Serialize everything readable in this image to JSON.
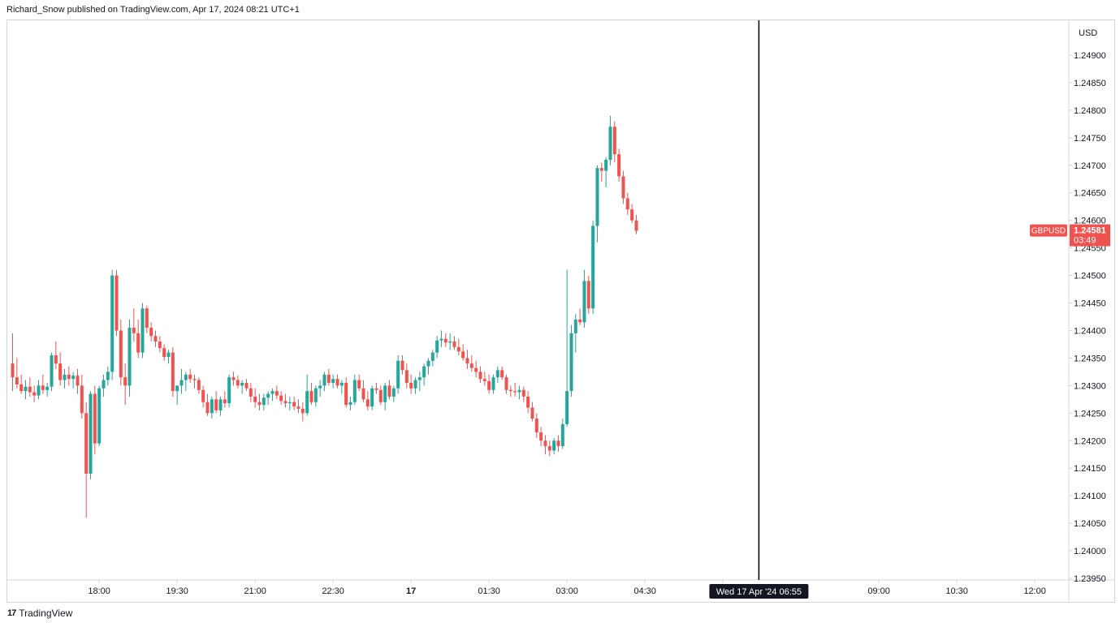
{
  "header": {
    "published_text": "Richard_Snow published on TradingView.com, Apr 17, 2024 08:21 UTC+1"
  },
  "footer": {
    "logo_icon": "tradingview-logo-icon",
    "logo_glyph": "17",
    "brand": "TradingView"
  },
  "colors": {
    "up": "#26a69a",
    "down": "#ef5350",
    "axis_text": "#131722",
    "border": "#d1d4dc",
    "crosshair": "#000000",
    "price_label_bg": "#ef5350"
  },
  "chart_data": {
    "type": "candlestick",
    "symbol": "GBPUSD",
    "currency_label": "USD",
    "last_price_label": "1.24581",
    "countdown_label": "03:49",
    "ylim": [
      1.2395,
      1.2493
    ],
    "y_ticks": [
      "1.24900",
      "1.24850",
      "1.24800",
      "1.24750",
      "1.24700",
      "1.24650",
      "1.24600",
      "1.24550",
      "1.24500",
      "1.24450",
      "1.24400",
      "1.24350",
      "1.24300",
      "1.24250",
      "1.24200",
      "1.24150",
      "1.24100",
      "1.24050",
      "1.24000",
      "1.23950"
    ],
    "x_ticks": [
      {
        "label": "18:00",
        "index": 20,
        "bold": false
      },
      {
        "label": "19:30",
        "index": 38,
        "bold": false
      },
      {
        "label": "21:00",
        "index": 56,
        "bold": false
      },
      {
        "label": "22:30",
        "index": 74,
        "bold": false
      },
      {
        "label": "17",
        "index": 92,
        "bold": true
      },
      {
        "label": "01:30",
        "index": 110,
        "bold": false
      },
      {
        "label": "03:00",
        "index": 128,
        "bold": false
      },
      {
        "label": "04:30",
        "index": 146,
        "bold": false
      },
      {
        "label": "06",
        "index": 164,
        "bold": false
      },
      {
        "label": "09:00",
        "index": 200,
        "bold": false
      },
      {
        "label": "10:30",
        "index": 218,
        "bold": false
      },
      {
        "label": "12:00",
        "index": 236,
        "bold": false
      }
    ],
    "crosshair": {
      "index": 172.3,
      "label": "Wed 17 Apr '24   06:55"
    },
    "candles": [
      [
        1.2434,
        1.24395,
        1.2429,
        1.24315
      ],
      [
        1.24315,
        1.2435,
        1.24295,
        1.24302
      ],
      [
        1.24302,
        1.2432,
        1.24285,
        1.2429
      ],
      [
        1.2429,
        1.2431,
        1.24275,
        1.24298
      ],
      [
        1.24298,
        1.24315,
        1.2428,
        1.24288
      ],
      [
        1.24288,
        1.243,
        1.2427,
        1.24282
      ],
      [
        1.24282,
        1.2431,
        1.24275,
        1.243
      ],
      [
        1.243,
        1.2432,
        1.24285,
        1.24292
      ],
      [
        1.24292,
        1.24305,
        1.2428,
        1.24298
      ],
      [
        1.24298,
        1.2436,
        1.2429,
        1.24355
      ],
      [
        1.24355,
        1.2438,
        1.2433,
        1.2434
      ],
      [
        1.2434,
        1.2436,
        1.243,
        1.2431
      ],
      [
        1.2431,
        1.2433,
        1.24295,
        1.2432
      ],
      [
        1.2432,
        1.24335,
        1.243,
        1.24312
      ],
      [
        1.24312,
        1.24325,
        1.24295,
        1.24318
      ],
      [
        1.24318,
        1.2433,
        1.24285,
        1.243
      ],
      [
        1.243,
        1.2432,
        1.2424,
        1.2425
      ],
      [
        1.2425,
        1.2427,
        1.2406,
        1.2414
      ],
      [
        1.2414,
        1.2429,
        1.2413,
        1.24285
      ],
      [
        1.24285,
        1.243,
        1.24175,
        1.24195
      ],
      [
        1.24195,
        1.243,
        1.2419,
        1.24295
      ],
      [
        1.24295,
        1.2432,
        1.2428,
        1.2431
      ],
      [
        1.2431,
        1.24335,
        1.243,
        1.24325
      ],
      [
        1.24325,
        1.2451,
        1.2431,
        1.245
      ],
      [
        1.245,
        1.2451,
        1.2439,
        1.244
      ],
      [
        1.244,
        1.2442,
        1.243,
        1.24315
      ],
      [
        1.24315,
        1.2434,
        1.24265,
        1.243
      ],
      [
        1.243,
        1.2442,
        1.2428,
        1.24405
      ],
      [
        1.24405,
        1.2444,
        1.2438,
        1.24395
      ],
      [
        1.24395,
        1.2442,
        1.2435,
        1.2436
      ],
      [
        1.2436,
        1.2445,
        1.2435,
        1.2444
      ],
      [
        1.2444,
        1.24445,
        1.24395,
        1.24405
      ],
      [
        1.24405,
        1.24415,
        1.2438,
        1.2439
      ],
      [
        1.2439,
        1.244,
        1.2437,
        1.2438
      ],
      [
        1.2438,
        1.2439,
        1.2436,
        1.24368
      ],
      [
        1.24368,
        1.24375,
        1.24345,
        1.24352
      ],
      [
        1.24352,
        1.24365,
        1.2434,
        1.2436
      ],
      [
        1.2436,
        1.2437,
        1.2428,
        1.2429
      ],
      [
        1.2429,
        1.243,
        1.24265,
        1.243
      ],
      [
        1.243,
        1.2433,
        1.24285,
        1.2431
      ],
      [
        1.2431,
        1.24325,
        1.2429,
        1.2432
      ],
      [
        1.2432,
        1.2433,
        1.24305,
        1.24312
      ],
      [
        1.24312,
        1.2432,
        1.24295,
        1.2431
      ],
      [
        1.2431,
        1.24315,
        1.24285,
        1.24292
      ],
      [
        1.24292,
        1.243,
        1.2426,
        1.2427
      ],
      [
        1.2427,
        1.24285,
        1.24245,
        1.2425
      ],
      [
        1.2425,
        1.2428,
        1.2424,
        1.24275
      ],
      [
        1.24275,
        1.2429,
        1.2425,
        1.24255
      ],
      [
        1.24255,
        1.2428,
        1.24245,
        1.24275
      ],
      [
        1.24275,
        1.2429,
        1.2426,
        1.24268
      ],
      [
        1.24268,
        1.2432,
        1.2426,
        1.24315
      ],
      [
        1.24315,
        1.24325,
        1.243,
        1.2431
      ],
      [
        1.2431,
        1.24318,
        1.24295,
        1.243
      ],
      [
        1.243,
        1.2431,
        1.24285,
        1.24305
      ],
      [
        1.24305,
        1.24312,
        1.2429,
        1.24295
      ],
      [
        1.24295,
        1.24305,
        1.2427,
        1.2428
      ],
      [
        1.2428,
        1.24295,
        1.2426,
        1.2427
      ],
      [
        1.2427,
        1.24285,
        1.24255,
        1.24265
      ],
      [
        1.24265,
        1.24285,
        1.24255,
        1.24278
      ],
      [
        1.24278,
        1.2429,
        1.24265,
        1.24285
      ],
      [
        1.24285,
        1.24295,
        1.24272,
        1.2429
      ],
      [
        1.2429,
        1.243,
        1.24275,
        1.24282
      ],
      [
        1.24282,
        1.2429,
        1.24265,
        1.24272
      ],
      [
        1.24272,
        1.24285,
        1.2426,
        1.24268
      ],
      [
        1.24268,
        1.2428,
        1.24255,
        1.2427
      ],
      [
        1.2427,
        1.2428,
        1.24255,
        1.24262
      ],
      [
        1.24262,
        1.24275,
        1.2425,
        1.24258
      ],
      [
        1.24258,
        1.2427,
        1.24235,
        1.2425
      ],
      [
        1.2425,
        1.2432,
        1.24245,
        1.2429
      ],
      [
        1.2429,
        1.24305,
        1.24265,
        1.2427
      ],
      [
        1.2427,
        1.243,
        1.24262,
        1.24295
      ],
      [
        1.24295,
        1.2431,
        1.2428,
        1.243
      ],
      [
        1.243,
        1.24325,
        1.2429,
        1.2432
      ],
      [
        1.2432,
        1.2433,
        1.243,
        1.24305
      ],
      [
        1.24305,
        1.2432,
        1.24295,
        1.24312
      ],
      [
        1.24312,
        1.2432,
        1.24295,
        1.243
      ],
      [
        1.243,
        1.2431,
        1.24285,
        1.24305
      ],
      [
        1.24305,
        1.24315,
        1.2426,
        1.24265
      ],
      [
        1.24265,
        1.2428,
        1.24255,
        1.2427
      ],
      [
        1.2427,
        1.2432,
        1.24265,
        1.2431
      ],
      [
        1.2431,
        1.2432,
        1.2429,
        1.24295
      ],
      [
        1.24295,
        1.2431,
        1.2427,
        1.24275
      ],
      [
        1.24275,
        1.2429,
        1.24255,
        1.24262
      ],
      [
        1.24262,
        1.243,
        1.24255,
        1.24295
      ],
      [
        1.24295,
        1.24305,
        1.24285,
        1.24292
      ],
      [
        1.24292,
        1.243,
        1.24265,
        1.2427
      ],
      [
        1.2427,
        1.24305,
        1.24255,
        1.243
      ],
      [
        1.243,
        1.2431,
        1.24275,
        1.2428
      ],
      [
        1.2428,
        1.243,
        1.2427,
        1.24295
      ],
      [
        1.24295,
        1.24355,
        1.24285,
        1.24345
      ],
      [
        1.24345,
        1.24355,
        1.2432,
        1.24328
      ],
      [
        1.24328,
        1.2434,
        1.24295,
        1.24305
      ],
      [
        1.24305,
        1.2432,
        1.24285,
        1.24295
      ],
      [
        1.24295,
        1.24315,
        1.24285,
        1.2431
      ],
      [
        1.2431,
        1.24325,
        1.2429,
        1.24315
      ],
      [
        1.24315,
        1.2434,
        1.243,
        1.24335
      ],
      [
        1.24335,
        1.2435,
        1.2432,
        1.24345
      ],
      [
        1.24345,
        1.24365,
        1.24335,
        1.2436
      ],
      [
        1.2436,
        1.2439,
        1.2435,
        1.24382
      ],
      [
        1.24382,
        1.244,
        1.2437,
        1.24385
      ],
      [
        1.24385,
        1.24395,
        1.2437,
        1.24378
      ],
      [
        1.24378,
        1.24395,
        1.24365,
        1.2438
      ],
      [
        1.2438,
        1.2439,
        1.24365,
        1.2437
      ],
      [
        1.2437,
        1.24385,
        1.24355,
        1.24362
      ],
      [
        1.24362,
        1.24375,
        1.24345,
        1.2435
      ],
      [
        1.2435,
        1.24365,
        1.2433,
        1.2434
      ],
      [
        1.2434,
        1.24355,
        1.24325,
        1.24332
      ],
      [
        1.24332,
        1.24345,
        1.24315,
        1.24325
      ],
      [
        1.24325,
        1.24335,
        1.24305,
        1.24312
      ],
      [
        1.24312,
        1.24325,
        1.243,
        1.24308
      ],
      [
        1.24308,
        1.2432,
        1.24285,
        1.24292
      ],
      [
        1.24292,
        1.2432,
        1.24285,
        1.24315
      ],
      [
        1.24315,
        1.24335,
        1.24305,
        1.24328
      ],
      [
        1.24328,
        1.24335,
        1.2431,
        1.24315
      ],
      [
        1.24315,
        1.2432,
        1.24285,
        1.24292
      ],
      [
        1.24292,
        1.243,
        1.2428,
        1.2429
      ],
      [
        1.2429,
        1.24305,
        1.2428,
        1.24288
      ],
      [
        1.24288,
        1.243,
        1.24275,
        1.24292
      ],
      [
        1.24292,
        1.24298,
        1.2427,
        1.2428
      ],
      [
        1.2428,
        1.2429,
        1.2425,
        1.2426
      ],
      [
        1.2426,
        1.2427,
        1.24235,
        1.2424
      ],
      [
        1.2424,
        1.2425,
        1.24205,
        1.24215
      ],
      [
        1.24215,
        1.24225,
        1.2419,
        1.242
      ],
      [
        1.242,
        1.2421,
        1.24175,
        1.2419
      ],
      [
        1.2419,
        1.242,
        1.24172,
        1.24182
      ],
      [
        1.24182,
        1.24205,
        1.24175,
        1.242
      ],
      [
        1.242,
        1.2421,
        1.2418,
        1.2419
      ],
      [
        1.2419,
        1.2424,
        1.24185,
        1.2423
      ],
      [
        1.2423,
        1.2451,
        1.24225,
        1.2429
      ],
      [
        1.2429,
        1.2441,
        1.2428,
        1.24395
      ],
      [
        1.24395,
        1.2443,
        1.2436,
        1.2442
      ],
      [
        1.2442,
        1.2444,
        1.2441,
        1.24415
      ],
      [
        1.24415,
        1.2451,
        1.24405,
        1.2449
      ],
      [
        1.2449,
        1.245,
        1.2443,
        1.2444
      ],
      [
        1.2444,
        1.246,
        1.2443,
        1.2459
      ],
      [
        1.2459,
        1.247,
        1.2456,
        1.24695
      ],
      [
        1.24695,
        1.24705,
        1.2467,
        1.2469
      ],
      [
        1.2469,
        1.24715,
        1.2466,
        1.2471
      ],
      [
        1.2471,
        1.2479,
        1.247,
        1.2477
      ],
      [
        1.2477,
        1.2478,
        1.24705,
        1.2472
      ],
      [
        1.2472,
        1.2473,
        1.2467,
        1.2468
      ],
      [
        1.2468,
        1.2469,
        1.2463,
        1.2464
      ],
      [
        1.2464,
        1.2465,
        1.2461,
        1.2462
      ],
      [
        1.2462,
        1.2463,
        1.24595,
        1.246
      ],
      [
        1.246,
        1.2461,
        1.24575,
        1.24581
      ]
    ]
  }
}
